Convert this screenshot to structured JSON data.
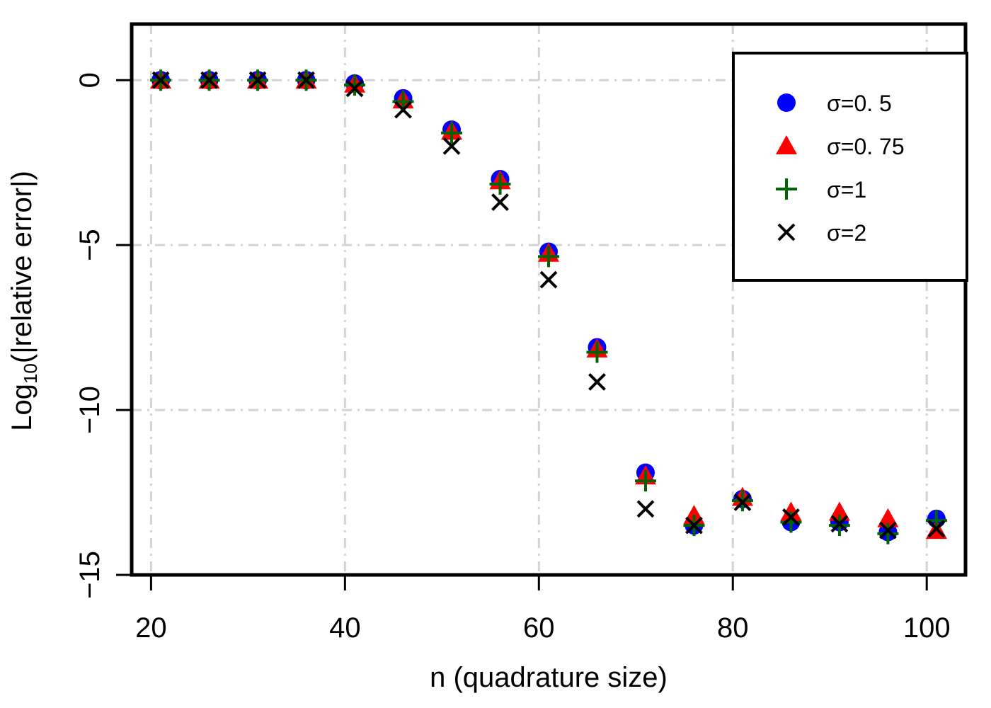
{
  "chart_data": {
    "type": "scatter",
    "xlabel": "n (quadrature size)",
    "ylabel_main": "Log",
    "ylabel_sub": "10",
    "ylabel_rest": "(|relative error|)",
    "xlim": [
      18,
      104
    ],
    "ylim": [
      -15,
      1.7
    ],
    "x_ticks": [
      20,
      40,
      60,
      80,
      100
    ],
    "y_ticks": [
      0,
      -5,
      -10,
      -15
    ],
    "x_tick_labels": [
      "20",
      "40",
      "60",
      "80",
      "100"
    ],
    "y_tick_labels": [
      "0",
      "−5",
      "−10",
      "−15"
    ],
    "grid": true,
    "legend_position": "top-right",
    "x": [
      21,
      26,
      31,
      36,
      41,
      46,
      51,
      56,
      61,
      66,
      71,
      76,
      81,
      86,
      91,
      96,
      101
    ],
    "series": [
      {
        "name": "σ=0. 5",
        "marker": "circle",
        "color": "#0000ff",
        "values": [
          0,
          0,
          0,
          0,
          -0.1,
          -0.55,
          -1.5,
          -3.0,
          -5.2,
          -8.1,
          -11.9,
          -13.5,
          -12.7,
          -13.4,
          -13.4,
          -13.7,
          -13.3
        ]
      },
      {
        "name": "σ=0. 75",
        "marker": "triangle",
        "color": "#ff0000",
        "values": [
          0,
          0,
          0,
          0,
          -0.12,
          -0.6,
          -1.55,
          -3.05,
          -5.25,
          -8.15,
          -12.0,
          -13.2,
          -12.65,
          -13.1,
          -13.1,
          -13.3,
          -13.65
        ]
      },
      {
        "name": "σ=1",
        "marker": "plus",
        "color": "#006400",
        "values": [
          0,
          0,
          0,
          0,
          -0.15,
          -0.65,
          -1.6,
          -3.15,
          -5.35,
          -8.25,
          -12.15,
          -13.5,
          -12.75,
          -13.4,
          -13.5,
          -13.75,
          -13.35
        ]
      },
      {
        "name": "σ=2",
        "marker": "cross",
        "color": "#000000",
        "values": [
          0,
          0,
          0,
          0,
          -0.25,
          -0.9,
          -2.0,
          -3.7,
          -6.05,
          -9.15,
          -13.0,
          -13.5,
          -12.8,
          -13.25,
          -13.45,
          -13.65,
          -13.6
        ]
      }
    ]
  }
}
